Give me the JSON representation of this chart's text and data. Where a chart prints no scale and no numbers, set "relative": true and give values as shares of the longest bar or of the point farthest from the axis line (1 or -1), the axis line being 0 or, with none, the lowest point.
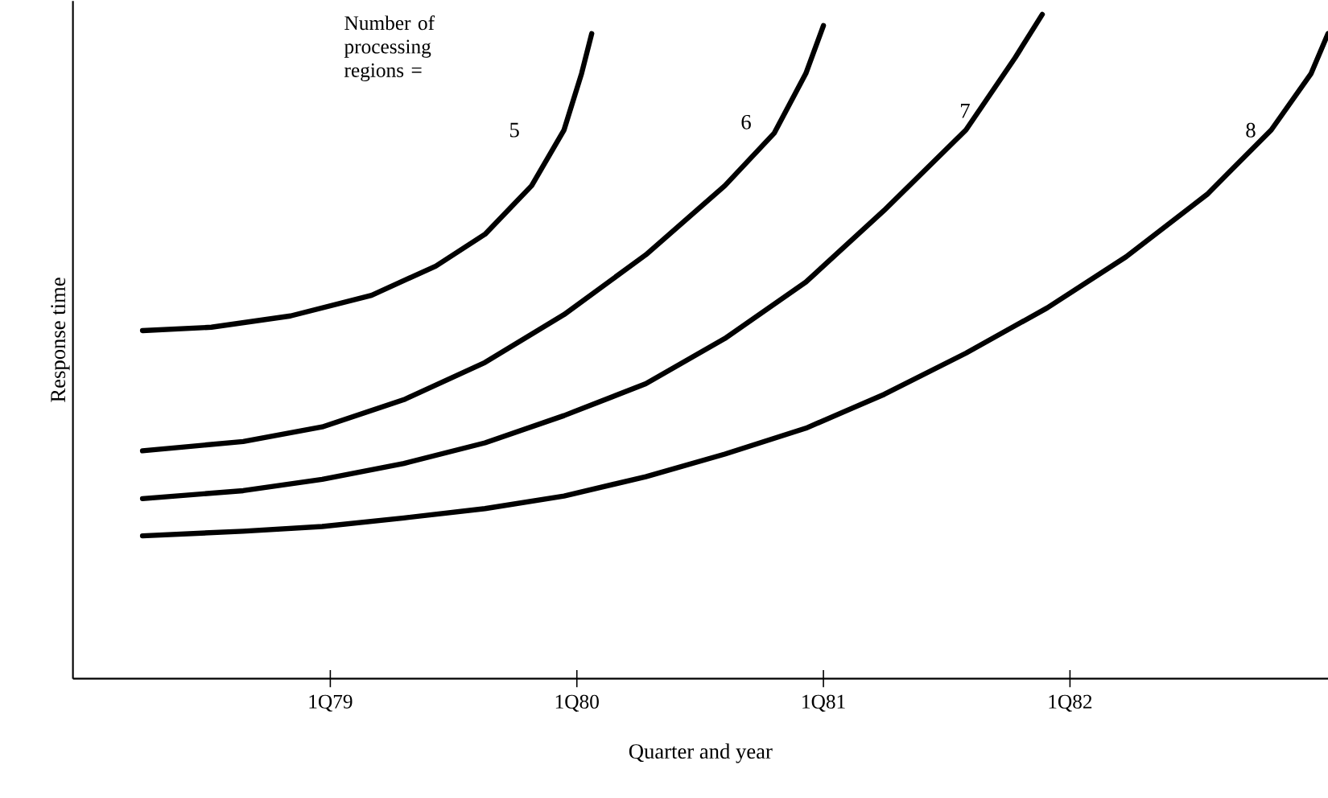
{
  "chart_data": {
    "type": "line",
    "relative": true,
    "xlabel": "Quarter and year",
    "ylabel": "Response time",
    "xlim": [
      "1977-12-16",
      "1983-01-18"
    ],
    "xticks": [
      {
        "value": "1979-01-01",
        "label": "1Q79"
      },
      {
        "value": "1980-01-01",
        "label": "1Q80"
      },
      {
        "value": "1981-01-01",
        "label": "1Q81"
      },
      {
        "value": "1982-01-01",
        "label": "1Q82"
      }
    ],
    "tick_labels": "x",
    "grid": false,
    "legend": false,
    "marker": "none",
    "line_style": "solid",
    "annotations": [
      "Number of processing regions ="
    ],
    "series": [
      {
        "name": "5",
        "color": "#000000",
        "x": [
          "1978-03-29",
          "1978-07-09",
          "1978-11-03",
          "1979-03-03",
          "1979-06-06",
          "1979-08-18",
          "1979-10-26",
          "1979-12-13",
          "1980-01-08",
          "1980-01-23"
        ],
        "values": [
          0.524,
          0.529,
          0.546,
          0.577,
          0.621,
          0.669,
          0.742,
          0.826,
          0.911,
          0.971
        ]
      },
      {
        "name": "6",
        "color": "#000000",
        "x": [
          "1978-03-29",
          "1978-08-25",
          "1978-12-20",
          "1979-04-20",
          "1979-08-18",
          "1979-12-13",
          "1980-04-12",
          "1980-08-07",
          "1980-10-19",
          "1980-12-05",
          "1981-01-01"
        ],
        "values": [
          0.343,
          0.357,
          0.379,
          0.42,
          0.476,
          0.548,
          0.638,
          0.742,
          0.821,
          0.911,
          0.983
        ]
      },
      {
        "name": "7",
        "color": "#000000",
        "x": [
          "1978-03-29",
          "1978-08-25",
          "1978-12-20",
          "1979-04-20",
          "1979-08-18",
          "1979-12-13",
          "1980-04-12",
          "1980-08-07",
          "1980-12-05",
          "1981-04-01",
          "1981-07-31",
          "1981-10-12",
          "1981-11-21"
        ],
        "values": [
          0.271,
          0.283,
          0.3,
          0.324,
          0.355,
          0.396,
          0.444,
          0.512,
          0.597,
          0.705,
          0.826,
          0.935,
          1.0
        ]
      },
      {
        "name": "8",
        "color": "#000000",
        "x": [
          "1978-03-29",
          "1978-08-25",
          "1978-12-20",
          "1979-04-20",
          "1979-08-18",
          "1979-12-13",
          "1980-04-12",
          "1980-08-07",
          "1980-12-05",
          "1981-04-01",
          "1981-07-31",
          "1981-11-28",
          "1982-03-25",
          "1982-07-23",
          "1982-10-26",
          "1982-12-24",
          "1983-01-18"
        ],
        "values": [
          0.215,
          0.222,
          0.229,
          0.242,
          0.256,
          0.275,
          0.304,
          0.338,
          0.377,
          0.428,
          0.49,
          0.558,
          0.635,
          0.729,
          0.826,
          0.911,
          0.971
        ]
      }
    ]
  }
}
